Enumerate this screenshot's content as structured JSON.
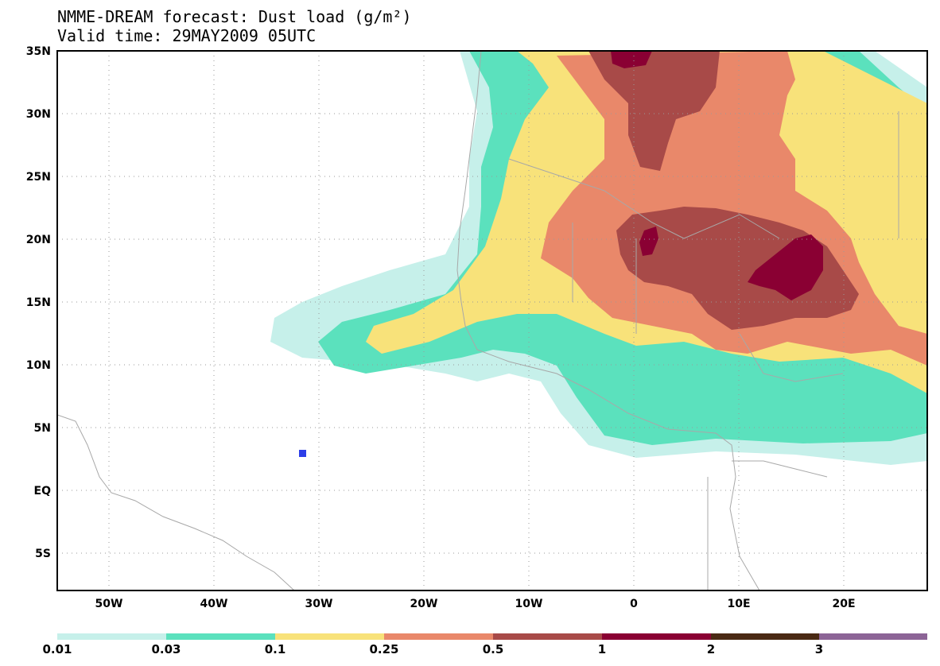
{
  "title": {
    "line1": "NMME-DREAM forecast: Dust load (g/m²)",
    "line2": "Valid time: 29MAY2009 05UTC"
  },
  "axes": {
    "lat_labels": [
      "35N",
      "30N",
      "25N",
      "20N",
      "15N",
      "10N",
      "5N",
      "EQ",
      "5S"
    ],
    "lat_values": [
      35,
      30,
      25,
      20,
      15,
      10,
      5,
      0,
      -5
    ],
    "lon_labels": [
      "50W",
      "40W",
      "30W",
      "20W",
      "10W",
      "0",
      "10E",
      "20E"
    ],
    "lon_values": [
      -50,
      -40,
      -30,
      -20,
      -10,
      0,
      10,
      20
    ],
    "lon_range": [
      -55,
      28
    ],
    "lat_range": [
      -8,
      35
    ]
  },
  "legend": {
    "labels": [
      "0.01",
      "0.03",
      "0.1",
      "0.25",
      "0.5",
      "1",
      "2",
      "3"
    ],
    "colors": [
      "#c6f0ea",
      "#5be1bd",
      "#f8e27a",
      "#e9886a",
      "#a84a48",
      "#8a0033",
      "#4a2a14",
      "#8c6496"
    ]
  },
  "fields": {
    "land_color": "#ffffff",
    "border_color": "#a8a8a8",
    "marker_color": "#2c3ee8"
  }
}
